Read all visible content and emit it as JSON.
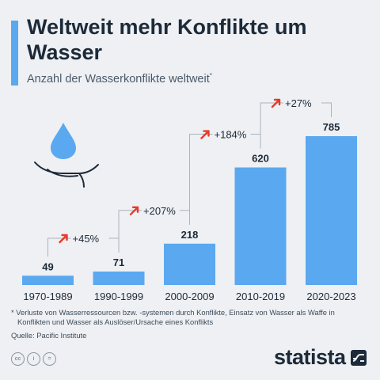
{
  "title": "Weltweit mehr Konflikte um Wasser",
  "subtitle": "Anzahl der Wasserkonflikte weltweit",
  "subtitle_marker": "*",
  "footnote": "* Verluste von Wasserressourcen bzw. -systemen durch Konflikte, Einsatz von Wasser als Waffe in Konflikten und Wasser als Auslöser/Ursache eines Konflikts",
  "source": "Quelle: Pacific Institute",
  "brand": "statista",
  "license_icons": [
    "cc-icon",
    "by-icon",
    "nd-icon"
  ],
  "colors": {
    "bar": "#5aa8f0",
    "arrow": "#e8392b",
    "text": "#1c2a39",
    "bracket": "#aab4bf",
    "icon_blue": "#5aa8f0"
  },
  "chart_data": {
    "type": "bar",
    "categories": [
      "1970-1989",
      "1990-1999",
      "2000-2009",
      "2010-2019",
      "2020-2023"
    ],
    "values": [
      49,
      71,
      218,
      620,
      785
    ],
    "ylim": [
      0,
      785
    ],
    "grid": false,
    "changes": [
      {
        "from": "1970-1989",
        "to": "1990-1999",
        "label": "+45%"
      },
      {
        "from": "1990-1999",
        "to": "2000-2009",
        "label": "+207%"
      },
      {
        "from": "2000-2009",
        "to": "2010-2019",
        "label": "+184%"
      },
      {
        "from": "2010-2019",
        "to": "2020-2023",
        "label": "+27%"
      }
    ]
  }
}
